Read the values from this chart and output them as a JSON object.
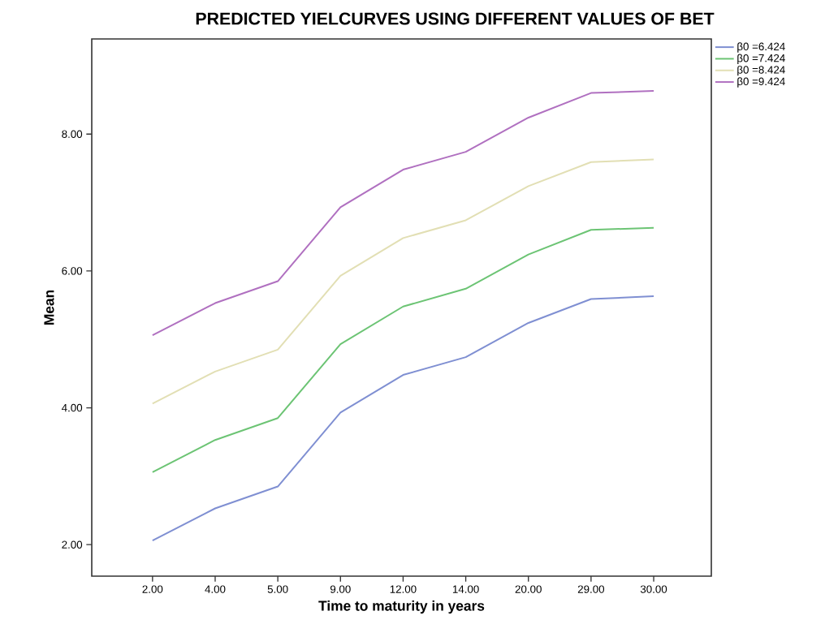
{
  "chart_data": {
    "type": "line",
    "title": "PREDICTED YIELCURVES USING DIFFERENT VALUES OF BET",
    "xlabel": "Time to maturity in years",
    "ylabel": "Mean",
    "categories": [
      "2.00",
      "4.00",
      "5.00",
      "9.00",
      "12.00",
      "14.00",
      "20.00",
      "29.00",
      "30.00"
    ],
    "ylim": [
      1.54,
      9.39
    ],
    "yticks": [
      {
        "value": 2,
        "label": "2.00"
      },
      {
        "value": 4,
        "label": "4.00"
      },
      {
        "value": 6,
        "label": "6.00"
      },
      {
        "value": 8,
        "label": "8.00"
      }
    ],
    "legend": "top right",
    "grid": false,
    "marker": "none",
    "line_style": "solid",
    "series": [
      {
        "name": "β0 =6.424",
        "color": "#7f8fd2",
        "values": [
          2.06,
          2.53,
          2.85,
          3.93,
          4.48,
          4.74,
          5.24,
          5.59,
          5.63
        ]
      },
      {
        "name": "β0 =7.424",
        "color": "#6cc474",
        "values": [
          3.06,
          3.53,
          3.85,
          4.93,
          5.48,
          5.74,
          6.24,
          6.6,
          6.63
        ]
      },
      {
        "name": "β0 =8.424",
        "color": "#e2dfb4",
        "values": [
          4.06,
          4.53,
          4.85,
          5.93,
          6.48,
          6.74,
          7.24,
          7.59,
          7.63
        ]
      },
      {
        "name": "β0 =9.424",
        "color": "#b070c0",
        "values": [
          5.06,
          5.53,
          5.85,
          6.93,
          7.48,
          7.74,
          8.24,
          8.6,
          8.63
        ]
      }
    ]
  }
}
